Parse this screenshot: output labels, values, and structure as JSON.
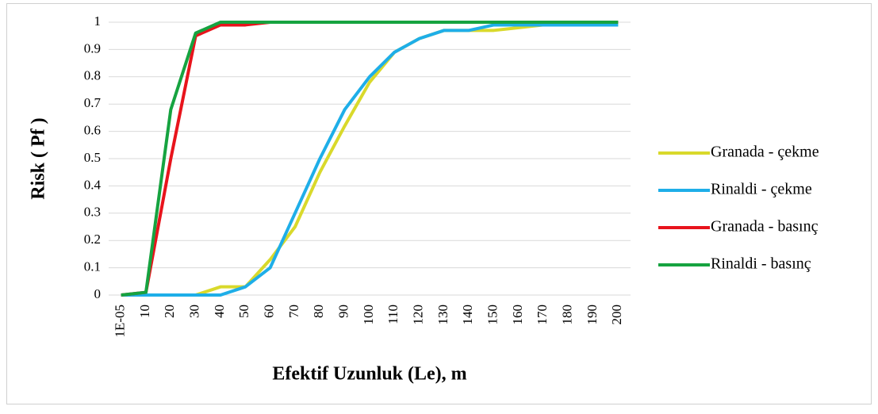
{
  "chart_data": {
    "type": "line",
    "y_label": "Risk ( Pf )",
    "x_label": "Efektif Uzunluk (Le), m",
    "categories": [
      "1E-05",
      "10",
      "20",
      "30",
      "40",
      "50",
      "60",
      "70",
      "80",
      "90",
      "100",
      "110",
      "120",
      "130",
      "140",
      "150",
      "160",
      "170",
      "180",
      "190",
      "200"
    ],
    "series": [
      {
        "name": "Granada - çekme",
        "color": "#d9d92b",
        "values": [
          0,
          0,
          0,
          0,
          0.03,
          0.03,
          0.13,
          0.25,
          0.45,
          0.62,
          0.78,
          0.89,
          0.94,
          0.97,
          0.97,
          0.97,
          0.98,
          0.99,
          0.99,
          0.99,
          0.99
        ]
      },
      {
        "name": "Rinaldi - çekme",
        "color": "#1eaee8",
        "values": [
          0,
          0,
          0,
          0,
          0,
          0.03,
          0.1,
          0.3,
          0.5,
          0.68,
          0.8,
          0.89,
          0.94,
          0.97,
          0.97,
          0.99,
          0.99,
          0.99,
          0.99,
          0.99,
          0.99
        ]
      },
      {
        "name": "Granada - basınç",
        "color": "#e8141c",
        "values": [
          0,
          0.01,
          0.5,
          0.95,
          0.99,
          0.99,
          1,
          1,
          1,
          1,
          1,
          1,
          1,
          1,
          1,
          1,
          1,
          1,
          1,
          1,
          1
        ]
      },
      {
        "name": "Rinaldi - basınç",
        "color": "#16a340",
        "values": [
          0,
          0.01,
          0.68,
          0.96,
          1,
          1,
          1,
          1,
          1,
          1,
          1,
          1,
          1,
          1,
          1,
          1,
          1,
          1,
          1,
          1,
          1
        ]
      }
    ],
    "ylim": [
      0,
      1
    ],
    "yticks": [
      0,
      0.1,
      0.2,
      0.3,
      0.4,
      0.5,
      0.6,
      0.7,
      0.8,
      0.9,
      1
    ],
    "grid": true,
    "legend": "right"
  }
}
